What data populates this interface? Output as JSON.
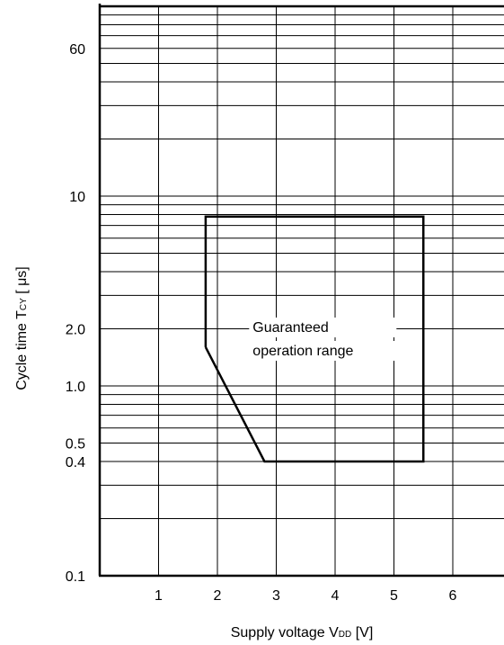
{
  "chart_data": {
    "type": "line",
    "title": "",
    "xlabel": {
      "main": "Supply voltage V",
      "sub": "DD",
      "unit": " [V]"
    },
    "ylabel": {
      "main": "Cycle time T",
      "sub": "CY",
      "unit": " [ μs]"
    },
    "x_scale": "linear",
    "y_scale": "log",
    "xlim": [
      0,
      7
    ],
    "ylim": [
      0.1,
      100
    ],
    "x_ticks": [
      1,
      2,
      3,
      4,
      5,
      6
    ],
    "x_tick_labels": [
      "1",
      "2",
      "3",
      "4",
      "5",
      "6"
    ],
    "y_tick_labels": [
      {
        "value": 60,
        "label": "60"
      },
      {
        "value": 10,
        "label": "10"
      },
      {
        "value": 2.0,
        "label": "2.0"
      },
      {
        "value": 1.0,
        "label": "1.0"
      },
      {
        "value": 0.5,
        "label": "0.5"
      },
      {
        "value": 0.4,
        "label": "0.4"
      },
      {
        "value": 0.1,
        "label": "0.1"
      }
    ],
    "grid": true,
    "series": [
      {
        "x": [
          1.8,
          1.8,
          5.5,
          5.5,
          2.8,
          1.8
        ],
        "y": [
          1.6,
          7.8,
          7.8,
          0.4,
          0.4,
          1.6
        ],
        "color": "#000000"
      }
    ],
    "annotations": [
      {
        "text": "Guaranteed",
        "x": 2.6,
        "y": 2.0
      },
      {
        "text": "operation range",
        "x": 2.6,
        "y": 1.6
      }
    ]
  }
}
